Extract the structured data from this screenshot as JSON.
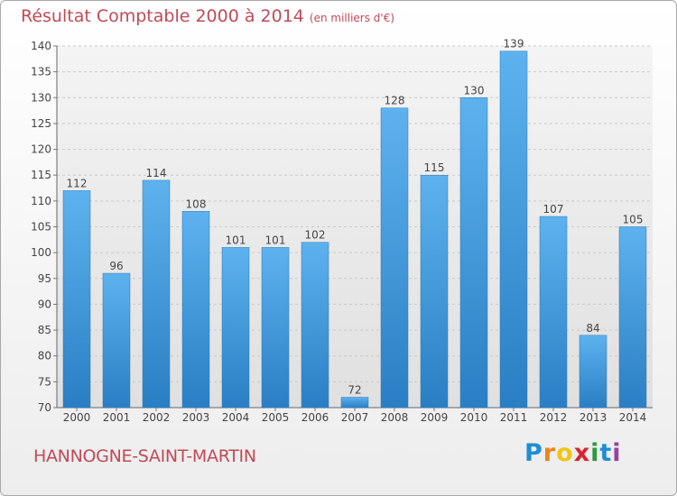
{
  "chart_data": {
    "type": "bar",
    "title": "Résultat Comptable 2000 à 2014",
    "unit_note": "(en milliers d'€)",
    "categories": [
      "2000",
      "2001",
      "2002",
      "2003",
      "2004",
      "2005",
      "2006",
      "2007",
      "2008",
      "2009",
      "2010",
      "2011",
      "2012",
      "2013",
      "2014"
    ],
    "values": [
      112,
      96,
      114,
      108,
      101,
      101,
      102,
      72,
      128,
      115,
      130,
      139,
      107,
      84,
      105
    ],
    "ylim": [
      70,
      140
    ],
    "yticks": [
      70,
      75,
      80,
      85,
      90,
      95,
      100,
      105,
      110,
      115,
      120,
      125,
      130,
      135,
      140
    ],
    "grid": true,
    "bar_color": "#4a9ee0"
  },
  "footer": {
    "commune": "HANNOGNE-SAINT-MARTIN",
    "logo_letters": [
      "P",
      "r",
      "o",
      "x",
      "i",
      "t",
      "i"
    ]
  },
  "colors": {
    "title": "#c04a57",
    "logo": [
      "#1f8dd6",
      "#e8861a",
      "#f2c414",
      "#d9232d",
      "#2a9a3c",
      "#1f8dd6",
      "#9b3fa0"
    ]
  }
}
